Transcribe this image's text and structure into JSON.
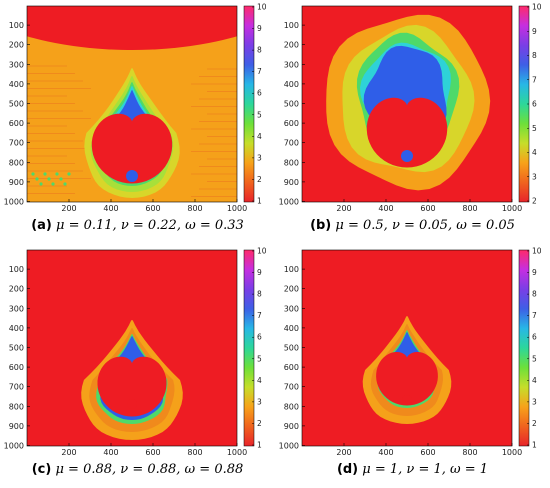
{
  "colorbar_palette": [
    "#e8242a",
    "#f0631e",
    "#f7a21a",
    "#c6de2a",
    "#6de03a",
    "#2dd79a",
    "#27b7e6",
    "#3e5fe6",
    "#7a3ee6",
    "#c62ee0",
    "#ff2a6a"
  ],
  "panels": [
    {
      "id": "a",
      "caption_label": "(a)",
      "caption_eq": "μ = 0.11, ν = 0.22, ω = 0.33",
      "x_ticks": [
        "200",
        "400",
        "600",
        "800",
        "1000"
      ],
      "y_ticks": [
        "100",
        "200",
        "300",
        "400",
        "500",
        "600",
        "700",
        "800",
        "900",
        "1000"
      ],
      "cb_ticks": [
        "10",
        "9",
        "8",
        "7",
        "6",
        "5",
        "4",
        "3",
        "2",
        "1"
      ],
      "background": "orange",
      "fractal_scale": 1.0
    },
    {
      "id": "b",
      "caption_label": "(b)",
      "caption_eq": "μ = 0.5, ν = 0.05, ω = 0.05",
      "x_ticks": [
        "200",
        "400",
        "600",
        "800",
        "1000"
      ],
      "y_ticks": [
        "100",
        "200",
        "300",
        "400",
        "500",
        "600",
        "700",
        "800",
        "900",
        "1000"
      ],
      "cb_ticks": [
        "10",
        "9",
        "8",
        "7",
        "6",
        "5",
        "4",
        "3",
        "2"
      ],
      "background": "red",
      "fractal_scale": 1.0
    },
    {
      "id": "c",
      "caption_label": "(c)",
      "caption_eq": "μ = 0.88, ν = 0.88, ω = 0.88",
      "x_ticks": [
        "200",
        "400",
        "600",
        "800",
        "1000"
      ],
      "y_ticks": [
        "100",
        "200",
        "300",
        "400",
        "500",
        "600",
        "700",
        "800",
        "900",
        "1000"
      ],
      "cb_ticks": [
        "10",
        "9",
        "8",
        "7",
        "6",
        "5",
        "4",
        "3",
        "2",
        "1"
      ],
      "background": "red",
      "fractal_scale": 0.95
    },
    {
      "id": "d",
      "caption_label": "(d)",
      "caption_eq": "μ = 1, ν = 1, ω = 1",
      "x_ticks": [
        "200",
        "400",
        "600",
        "800",
        "1000"
      ],
      "y_ticks": [
        "100",
        "200",
        "300",
        "400",
        "500",
        "600",
        "700",
        "800",
        "900",
        "1000"
      ],
      "cb_ticks": [
        "10",
        "9",
        "8",
        "7",
        "6",
        "5",
        "4",
        "3",
        "2",
        "1"
      ],
      "background": "red",
      "fractal_scale": 0.85
    }
  ]
}
